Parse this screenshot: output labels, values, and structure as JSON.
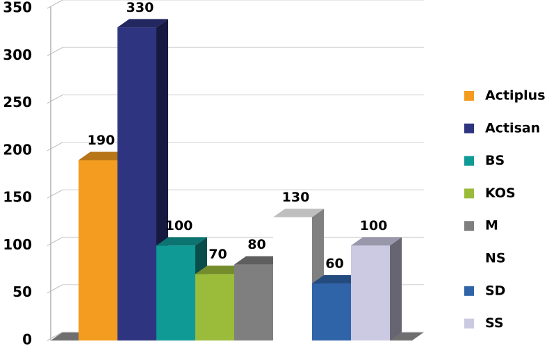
{
  "chart_data": {
    "type": "bar3d",
    "categories": [
      null
    ],
    "ylim": [
      0,
      350
    ],
    "yticks": [
      0,
      50,
      100,
      150,
      200,
      250,
      300,
      350
    ],
    "grid": true,
    "legend": "right",
    "series": [
      {
        "name": "Actiplus",
        "color": "#f39c1f",
        "values": [
          190
        ]
      },
      {
        "name": "Actisan",
        "color": "#2e3480",
        "values": [
          330
        ]
      },
      {
        "name": "BS",
        "color": "#0f9a96",
        "values": [
          100
        ]
      },
      {
        "name": "KOS",
        "color": "#9bbb3b",
        "values": [
          70
        ]
      },
      {
        "name": "M",
        "color": "#7f7f7f",
        "values": [
          80
        ]
      },
      {
        "name": "NS",
        "color": "#ffffff",
        "values": [
          130
        ]
      },
      {
        "name": "SD",
        "color": "#2f64a9",
        "values": [
          60
        ]
      },
      {
        "name": "SS",
        "color": "#ccc9e2",
        "values": [
          100
        ]
      }
    ]
  }
}
